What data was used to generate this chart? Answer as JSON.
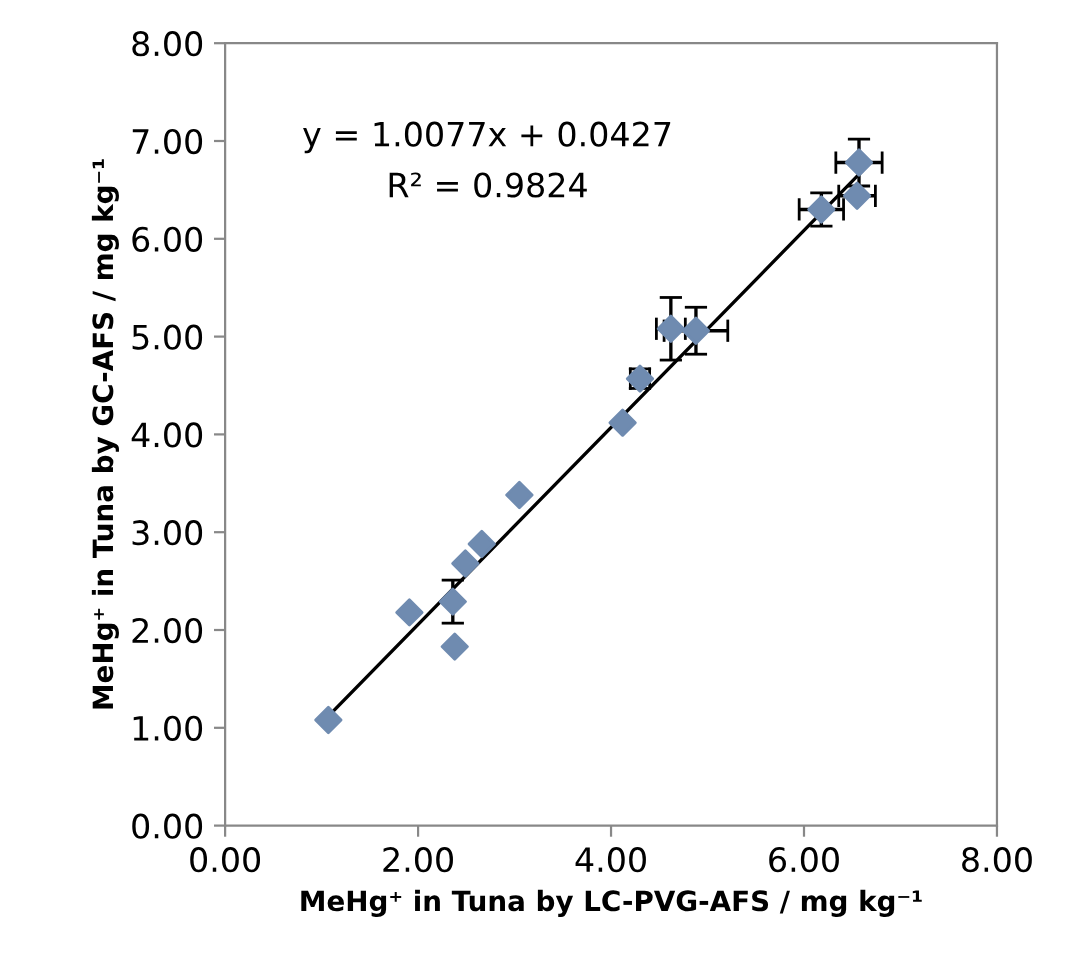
{
  "chart_data": {
    "type": "scatter",
    "xlabel": "MeHg⁺ in Tuna by LC-PVG-AFS / mg kg⁻¹",
    "ylabel": "MeHg⁺ in Tuna by GC-AFS / mg kg⁻¹",
    "annotations": [
      "y = 1.0077x + 0.0427",
      "R² = 0.9824"
    ],
    "xlim": [
      0,
      8
    ],
    "ylim": [
      0,
      8
    ],
    "xticks": [
      {
        "value": 0,
        "label": "0.00"
      },
      {
        "value": 2,
        "label": "2.00"
      },
      {
        "value": 4,
        "label": "4.00"
      },
      {
        "value": 6,
        "label": "6.00"
      },
      {
        "value": 8,
        "label": "8.00"
      }
    ],
    "yticks": [
      {
        "value": 0,
        "label": "0.00"
      },
      {
        "value": 1,
        "label": "1.00"
      },
      {
        "value": 2,
        "label": "2.00"
      },
      {
        "value": 3,
        "label": "3.00"
      },
      {
        "value": 4,
        "label": "4.00"
      },
      {
        "value": 5,
        "label": "5.00"
      },
      {
        "value": 6,
        "label": "6.00"
      },
      {
        "value": 7,
        "label": "7.00"
      },
      {
        "value": 8,
        "label": "8.00"
      }
    ],
    "grid": false,
    "series": [
      {
        "marker": "diamond",
        "color": "#6f8bb0",
        "x": [
          1.07,
          1.91,
          2.36,
          2.38,
          2.49,
          2.66,
          3.05,
          4.12,
          4.3,
          4.62,
          4.88,
          6.18,
          6.55,
          6.57
        ],
        "values": [
          1.08,
          2.18,
          2.29,
          1.83,
          2.68,
          2.88,
          3.38,
          4.12,
          4.57,
          5.08,
          5.06,
          6.3,
          6.44,
          6.78
        ],
        "errors": [
          null,
          null,
          0.22,
          null,
          null,
          null,
          null,
          null,
          0.1,
          0.32,
          0.24,
          0.17,
          null,
          0.24
        ],
        "xerrors": [
          null,
          null,
          null,
          null,
          null,
          null,
          null,
          null,
          0.1,
          0.15,
          0.33,
          0.23,
          0.19,
          0.24
        ]
      },
      {
        "type": "line",
        "color": "#000000",
        "x": [
          1.07,
          6.6
        ],
        "values": [
          1.12,
          6.69
        ]
      }
    ]
  }
}
